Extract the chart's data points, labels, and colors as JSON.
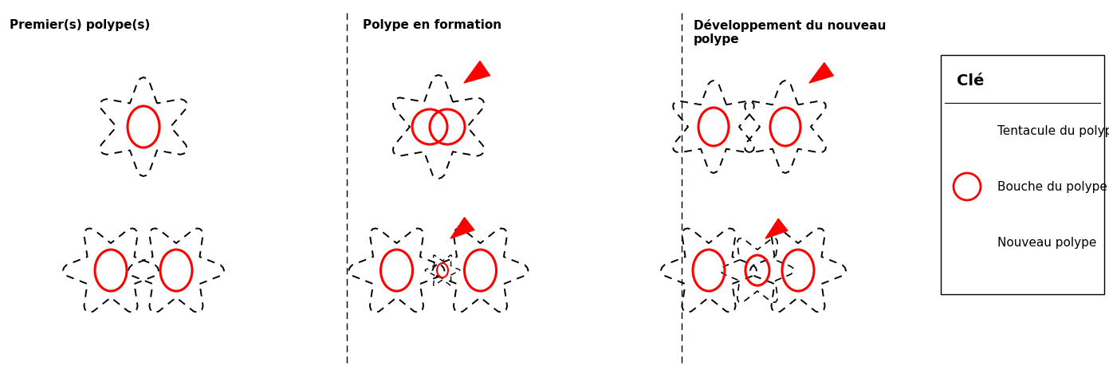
{
  "background_color": "#ffffff",
  "col_labels": [
    "Premier(s) polype(s)",
    "Polype en formation",
    "Développement du nouveau\npolype"
  ],
  "legend_title": "Clé",
  "legend_items": [
    "Tentacule du polype",
    "Bouche du polype",
    "Nouveau polype"
  ],
  "text_fontsize": 11,
  "legend_fontsize": 11,
  "legend_title_fontsize": 14
}
